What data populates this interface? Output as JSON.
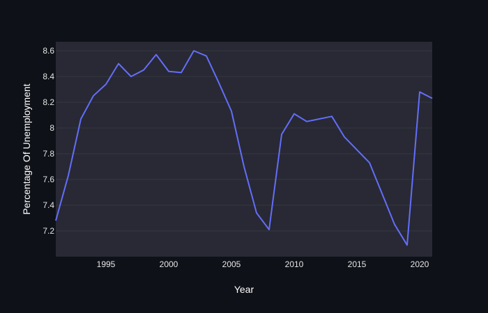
{
  "chart_data": {
    "type": "line",
    "title": "",
    "xlabel": "Year",
    "ylabel": "Percentage Of Unemployment",
    "xlim": [
      1991,
      2021
    ],
    "ylim": [
      7.0,
      8.67
    ],
    "grid": true,
    "legend": "none",
    "colors": {
      "page_background": "#0e1118",
      "plot_background": "#282934",
      "series": "#636efa",
      "grid": "#343641",
      "text": "#e6e6e6"
    },
    "x_ticks": [
      1995,
      2000,
      2005,
      2010,
      2015,
      2020
    ],
    "x_tick_labels": [
      "1995",
      "2000",
      "2005",
      "2010",
      "2015",
      "2020"
    ],
    "y_ticks": [
      7.2,
      7.4,
      7.6,
      7.8,
      8.0,
      8.2,
      8.4,
      8.6
    ],
    "y_tick_labels": [
      "7.2",
      "7.4",
      "7.6",
      "7.8",
      "8",
      "8.2",
      "8.4",
      "8.6"
    ],
    "series": [
      {
        "x": [
          1991,
          1992,
          1993,
          1994,
          1995,
          1996,
          1997,
          1998,
          1999,
          2000,
          2001,
          2002,
          2003,
          2004,
          2005,
          2006,
          2007,
          2008,
          2009,
          2010,
          2011,
          2012,
          2013,
          2014,
          2015,
          2016,
          2017,
          2018,
          2019,
          2020,
          2021
        ],
        "y": [
          7.28,
          7.63,
          8.07,
          8.25,
          8.34,
          8.5,
          8.4,
          8.45,
          8.57,
          8.44,
          8.43,
          8.6,
          8.56,
          8.35,
          8.13,
          7.7,
          7.34,
          7.21,
          7.95,
          8.11,
          8.05,
          8.07,
          8.09,
          7.93,
          7.83,
          7.73,
          7.49,
          7.25,
          7.09,
          8.28,
          8.23
        ]
      }
    ]
  }
}
